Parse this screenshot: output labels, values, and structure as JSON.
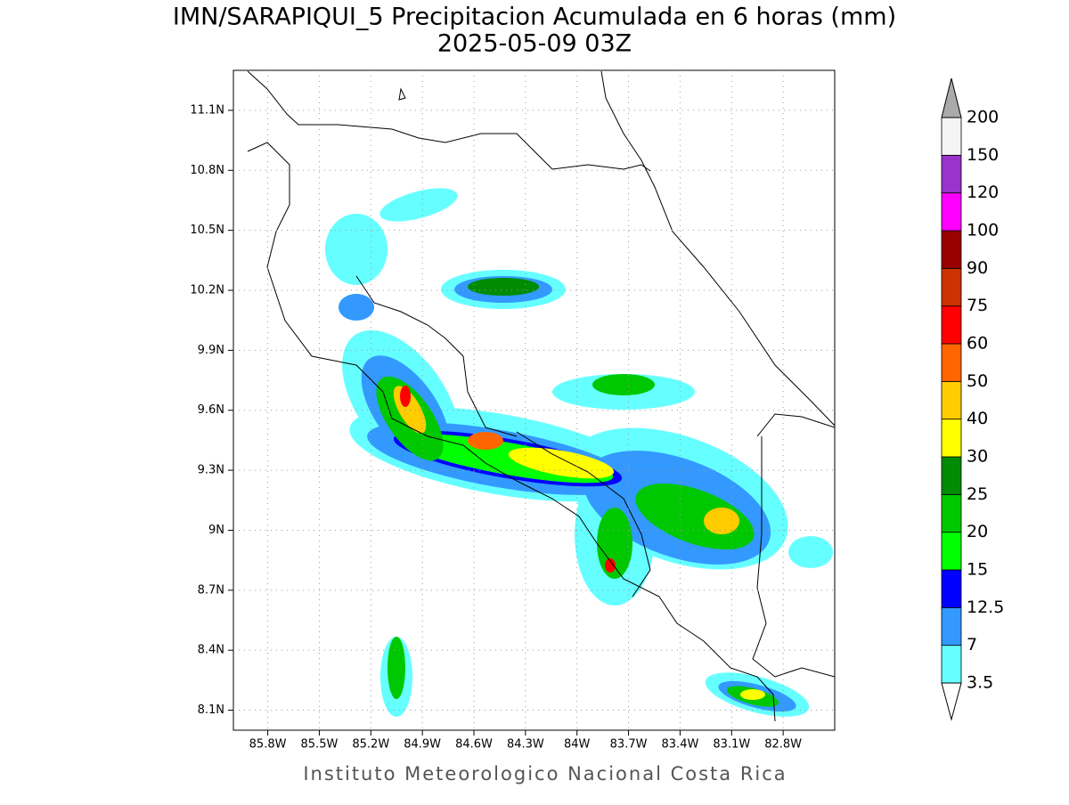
{
  "map": {
    "title": "IMN/SARAPIQUI_5 Precipitacion Acumulada en 6 horas (mm)",
    "subtitle": "2025-05-09 03Z",
    "footer": "Instituto Meteorologico Nacional Costa Rica",
    "lonlim": [
      -86.0,
      -82.5
    ],
    "latlim": [
      8.0,
      11.3
    ],
    "lonticks": [
      {
        "value": -85.8,
        "label": "85.8W"
      },
      {
        "value": -85.5,
        "label": "85.5W"
      },
      {
        "value": -85.2,
        "label": "85.2W"
      },
      {
        "value": -84.9,
        "label": "84.9W"
      },
      {
        "value": -84.6,
        "label": "84.6W"
      },
      {
        "value": -84.3,
        "label": "84.3W"
      },
      {
        "value": -84.0,
        "label": "84W"
      },
      {
        "value": -83.7,
        "label": "83.7W"
      },
      {
        "value": -83.4,
        "label": "83.4W"
      },
      {
        "value": -83.1,
        "label": "83.1W"
      },
      {
        "value": -82.8,
        "label": "82.8W"
      }
    ],
    "latticks": [
      {
        "value": 8.1,
        "label": "8.1N"
      },
      {
        "value": 8.4,
        "label": "8.4N"
      },
      {
        "value": 8.7,
        "label": "8.7N"
      },
      {
        "value": 9.0,
        "label": "9N"
      },
      {
        "value": 9.3,
        "label": "9.3N"
      },
      {
        "value": 9.6,
        "label": "9.6N"
      },
      {
        "value": 9.9,
        "label": "9.9N"
      },
      {
        "value": 10.2,
        "label": "10.2N"
      },
      {
        "value": 10.5,
        "label": "10.5N"
      },
      {
        "value": 10.8,
        "label": "10.8N"
      },
      {
        "value": 11.1,
        "label": "11.1N"
      }
    ],
    "grid": true,
    "colorbar": {
      "levels": [
        3.5,
        7,
        12.5,
        15,
        20,
        25,
        30,
        40,
        50,
        60,
        75,
        90,
        100,
        120,
        150,
        200
      ],
      "colors": [
        "#66ffff",
        "#3399ff",
        "#0000ff",
        "#00ff00",
        "#00c800",
        "#008c00",
        "#ffff00",
        "#ffcc00",
        "#ff6600",
        "#ff0000",
        "#cc3300",
        "#990000",
        "#ff00ff",
        "#9933cc",
        "#f5f5f5"
      ],
      "under_color": "#ffffff",
      "over_color": "#aaaaaa"
    }
  }
}
